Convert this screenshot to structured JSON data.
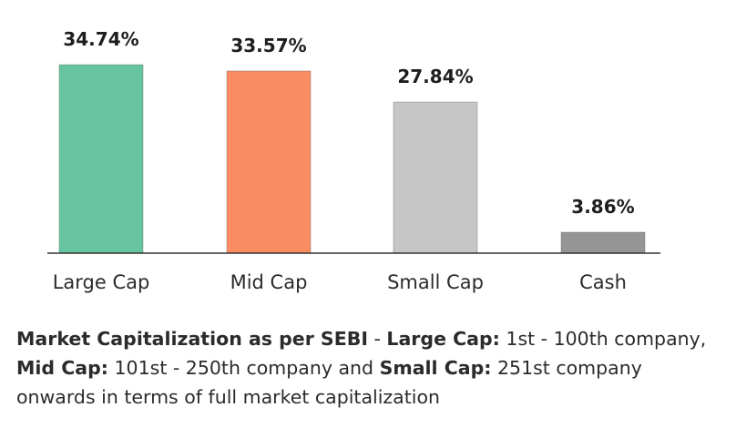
{
  "chart_data": {
    "type": "bar",
    "categories": [
      "Large Cap",
      "Mid Cap",
      "Small Cap",
      "Cash"
    ],
    "values": [
      34.74,
      33.57,
      27.84,
      3.86
    ],
    "value_labels": [
      "34.74%",
      "33.57%",
      "27.84%",
      "3.86%"
    ],
    "colors": [
      "#66c5a0",
      "#fb8c62",
      "#c6c6c6",
      "#959595"
    ],
    "title": "",
    "xlabel": "",
    "ylabel": "",
    "ylim": [
      0,
      34.74
    ],
    "grid": false,
    "legend": "none"
  },
  "footnote": {
    "term": "Market Capitalization as per SEBI",
    "sep": " - ",
    "large_label": "Large Cap:",
    "large_text": " 1st - 100th company, ",
    "mid_label": "Mid Cap:",
    "mid_text": " 101st - 250th company and ",
    "small_label": "Small Cap:",
    "small_text": " 251st company onwards in terms of full market capitalization"
  }
}
